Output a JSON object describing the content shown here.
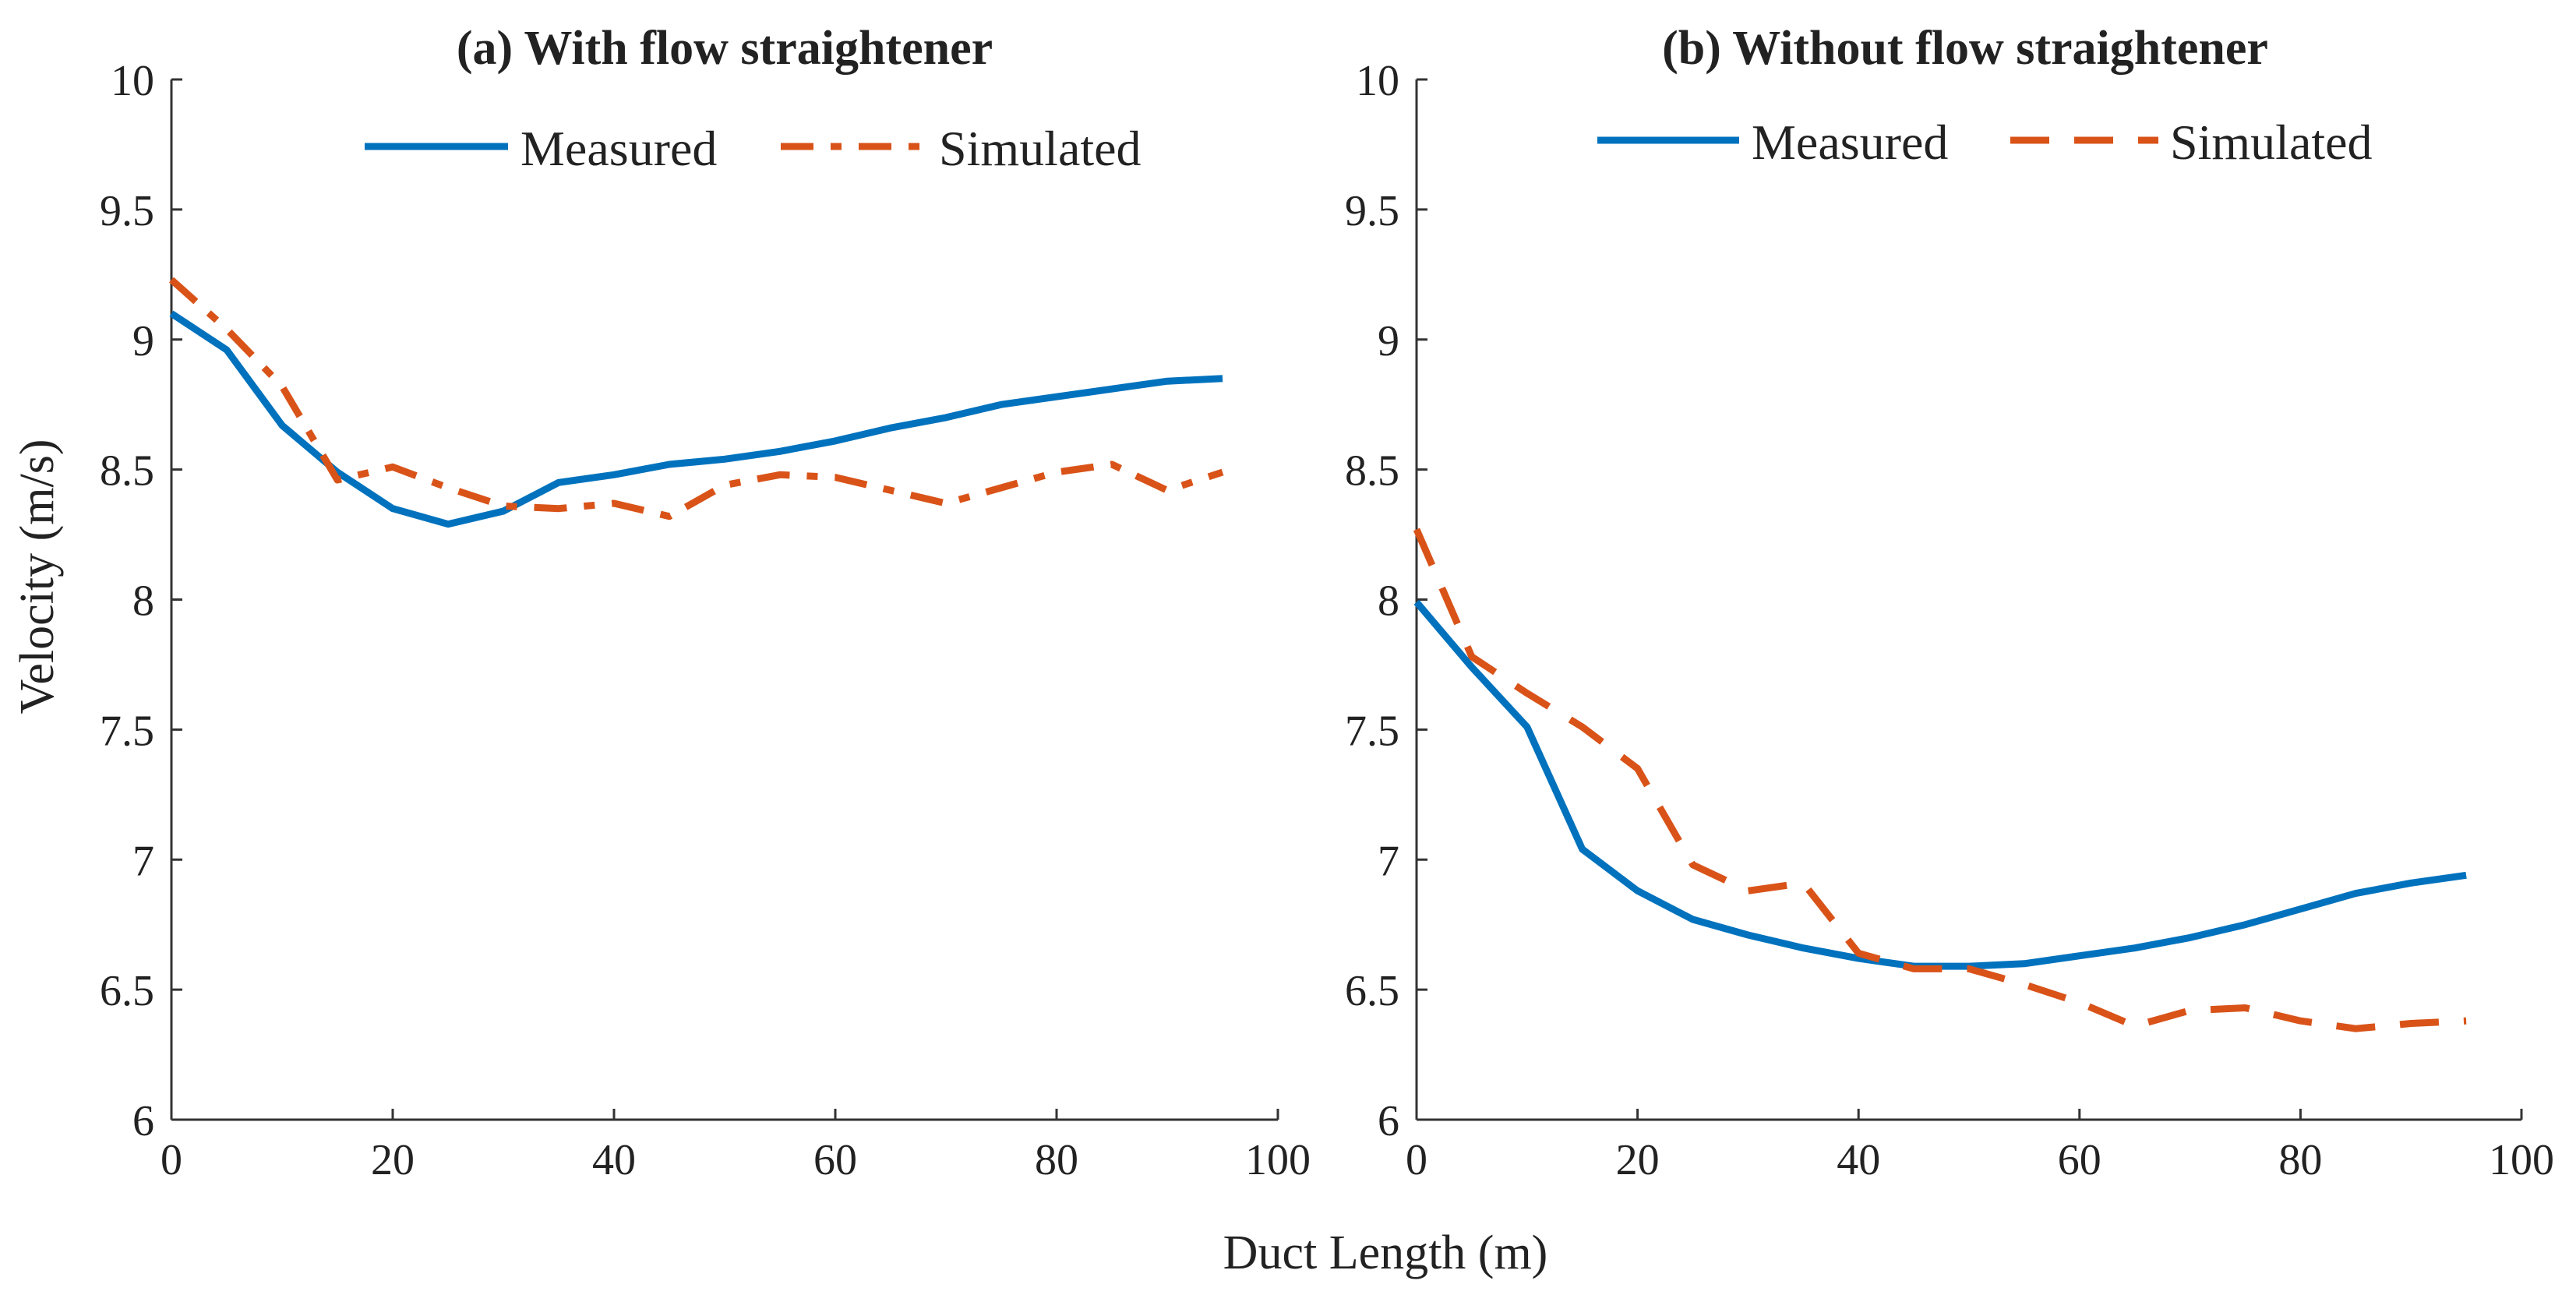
{
  "chart_data": [
    {
      "type": "line",
      "title": "(a) With flow straightener",
      "xlabel": "",
      "ylabel": "Velocity (m/s)",
      "xlim": [
        0,
        100
      ],
      "ylim": [
        6,
        10
      ],
      "xticks": [
        "0",
        "20",
        "40",
        "60",
        "80",
        "100"
      ],
      "yticks": [
        "6",
        "6.5",
        "7",
        "7.5",
        "8",
        "8.5",
        "9",
        "9.5",
        "10"
      ],
      "grid": false,
      "legend": "top-center, horizontal",
      "x": [
        0,
        5,
        10,
        15,
        20,
        25,
        30,
        35,
        40,
        45,
        50,
        55,
        60,
        65,
        70,
        75,
        80,
        85,
        90,
        95
      ],
      "series": [
        {
          "name": "Measured",
          "style": "solid",
          "color": "#0072BD",
          "values": [
            9.1,
            8.96,
            8.67,
            8.49,
            8.35,
            8.29,
            8.34,
            8.45,
            8.48,
            8.52,
            8.54,
            8.57,
            8.61,
            8.66,
            8.7,
            8.75,
            8.78,
            8.81,
            8.84,
            8.85
          ]
        },
        {
          "name": "Simulated",
          "style": "dash-dot",
          "color": "#D95319",
          "values": [
            9.23,
            9.04,
            8.82,
            8.46,
            8.51,
            8.43,
            8.36,
            8.35,
            8.37,
            8.32,
            8.44,
            8.48,
            8.47,
            8.42,
            8.37,
            8.43,
            8.49,
            8.52,
            8.42,
            8.49
          ]
        }
      ]
    },
    {
      "type": "line",
      "title": "(b) Without flow straightener",
      "xlabel": "",
      "ylabel": "",
      "xlim": [
        0,
        100
      ],
      "ylim": [
        6,
        10
      ],
      "xticks": [
        "0",
        "20",
        "40",
        "60",
        "80",
        "100"
      ],
      "yticks": [
        "6",
        "6.5",
        "7",
        "7.5",
        "8",
        "8.5",
        "9",
        "9.5",
        "10"
      ],
      "grid": false,
      "legend": "top-center, horizontal",
      "x": [
        0,
        5,
        10,
        15,
        20,
        25,
        30,
        35,
        40,
        45,
        50,
        55,
        60,
        65,
        70,
        75,
        80,
        85,
        90,
        95
      ],
      "series": [
        {
          "name": "Measured",
          "style": "solid",
          "color": "#0072BD",
          "values": [
            7.99,
            7.74,
            7.51,
            7.04,
            6.88,
            6.77,
            6.71,
            6.66,
            6.62,
            6.59,
            6.59,
            6.6,
            6.63,
            6.66,
            6.7,
            6.75,
            6.81,
            6.87,
            6.91,
            6.94
          ]
        },
        {
          "name": "Simulated",
          "style": "dashed",
          "color": "#D95319",
          "values": [
            8.27,
            7.78,
            7.64,
            7.51,
            7.35,
            6.98,
            6.88,
            6.91,
            6.64,
            6.58,
            6.58,
            6.52,
            6.45,
            6.36,
            6.42,
            6.43,
            6.38,
            6.35,
            6.37,
            6.38
          ]
        }
      ]
    }
  ],
  "shared_xlabel": "Duct Length (m)"
}
